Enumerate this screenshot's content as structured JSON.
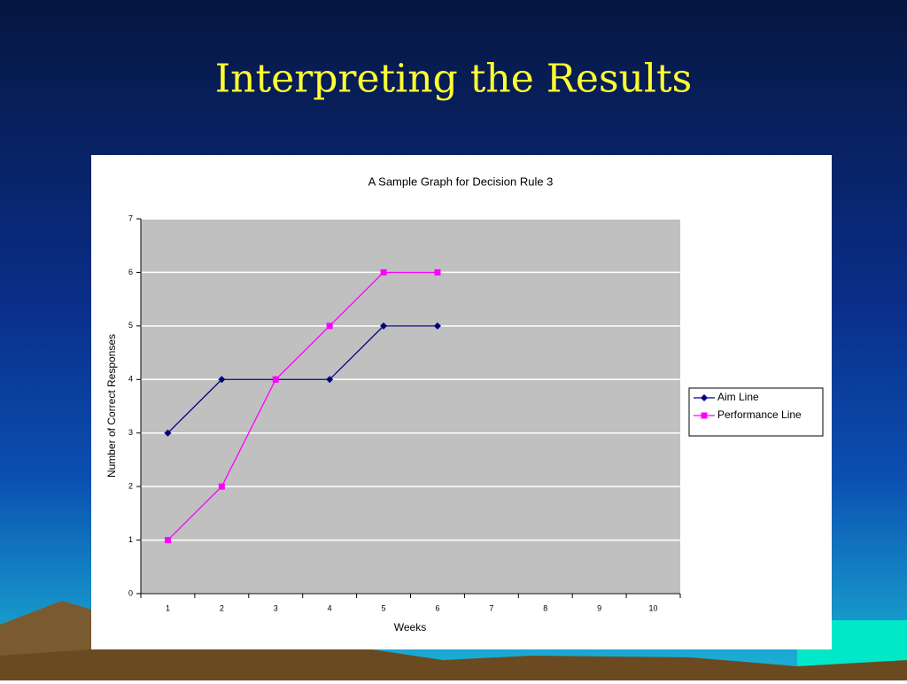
{
  "slide_title": "Interpreting the Results",
  "chart_data": {
    "type": "line",
    "title": "A Sample Graph for Decision Rule 3",
    "x_label": "Weeks",
    "y_label": "Number of Correct Responses",
    "categories": [
      "1",
      "2",
      "3",
      "4",
      "5",
      "6",
      "7",
      "8",
      "9",
      "10"
    ],
    "series": [
      {
        "name": "Aim Line",
        "color": "#000080",
        "marker": "diamond",
        "values": [
          3,
          4,
          4,
          4,
          5,
          5,
          null,
          null,
          null,
          null
        ]
      },
      {
        "name": "Performance Line",
        "color": "#ff00ff",
        "marker": "square",
        "values": [
          1,
          2,
          4,
          5,
          6,
          6,
          null,
          null,
          null,
          null
        ]
      }
    ],
    "ylim": [
      0,
      7
    ],
    "yticks": [
      0,
      1,
      2,
      3,
      4,
      5,
      6,
      7
    ],
    "grid": true,
    "legend": "right",
    "plot_background": "#c0c0c0"
  }
}
